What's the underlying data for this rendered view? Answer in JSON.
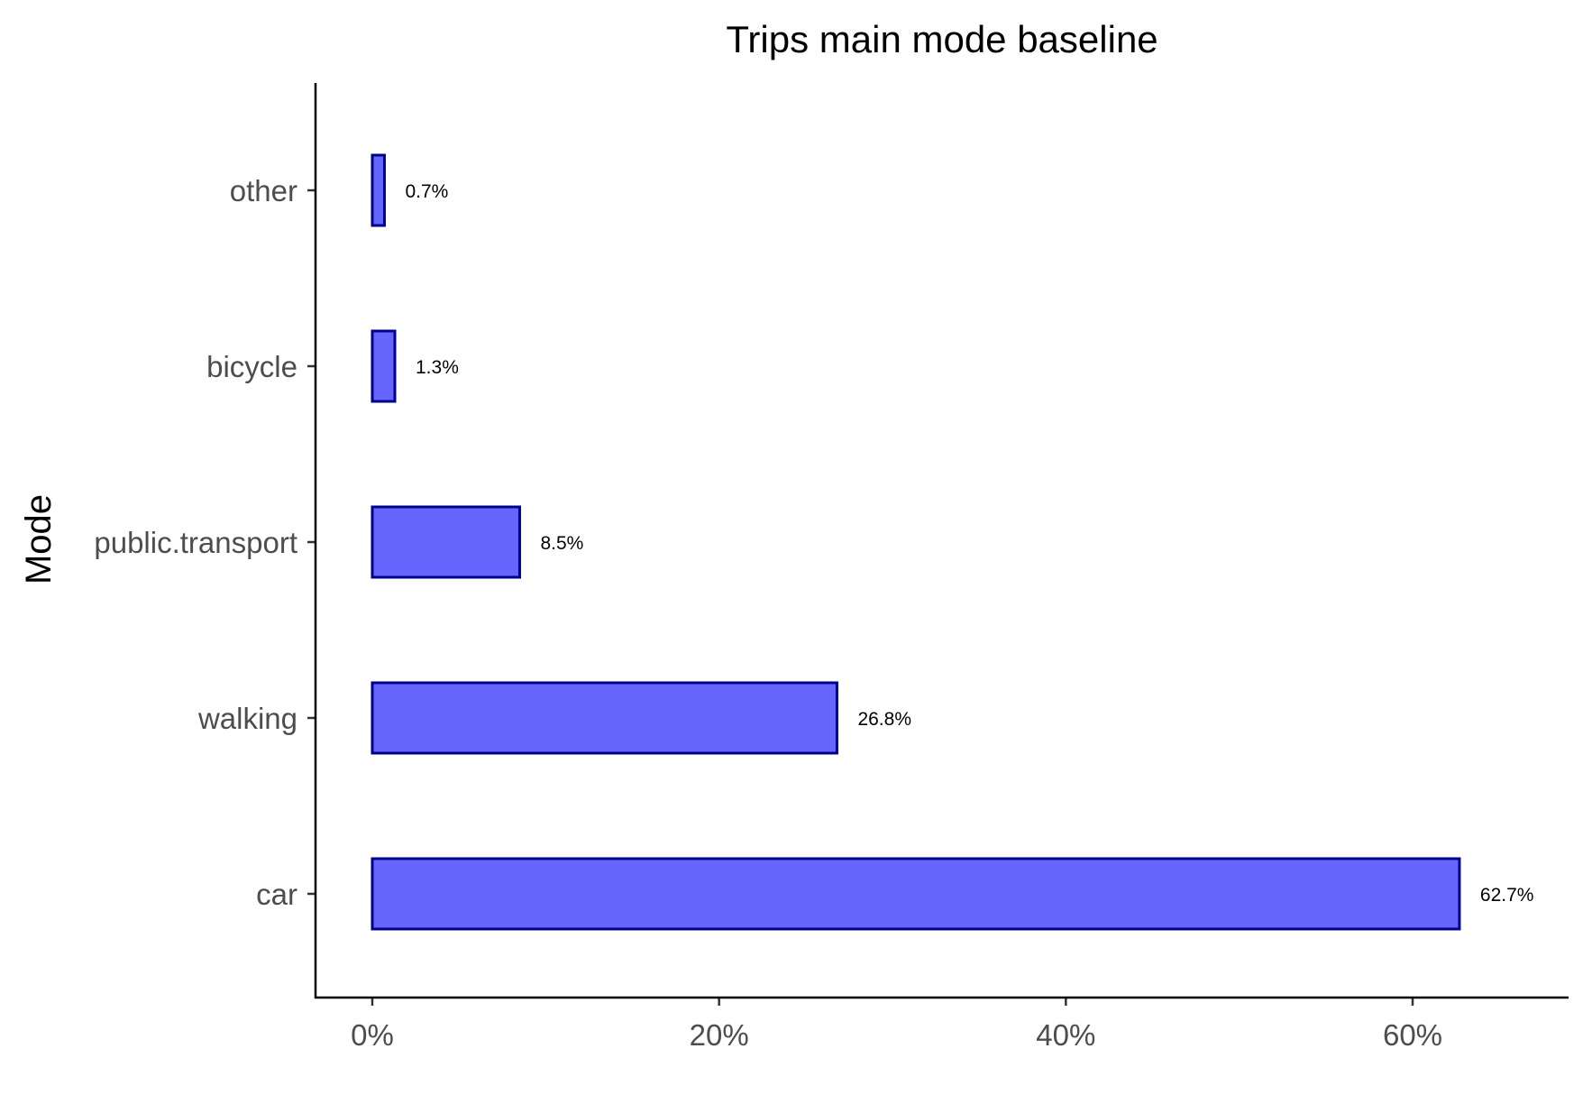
{
  "chart_data": {
    "type": "bar",
    "orientation": "horizontal",
    "title": "Trips main mode baseline",
    "xlabel": "",
    "ylabel": "Mode",
    "categories": [
      "other",
      "bicycle",
      "public.transport",
      "walking",
      "car"
    ],
    "values": [
      0.7,
      1.3,
      8.5,
      26.8,
      62.7
    ],
    "data_labels": [
      "0.7%",
      "1.3%",
      "8.5%",
      "26.8%",
      "62.7%"
    ],
    "xlim": [
      0,
      68
    ],
    "x_ticks": [
      0,
      20,
      40,
      60
    ],
    "x_tick_labels": [
      "0%",
      "20%",
      "40%",
      "60%"
    ],
    "grid": false,
    "legend": "none",
    "colors": {
      "bar_fill": "#6666ff",
      "bar_stroke": "#00008b"
    }
  }
}
